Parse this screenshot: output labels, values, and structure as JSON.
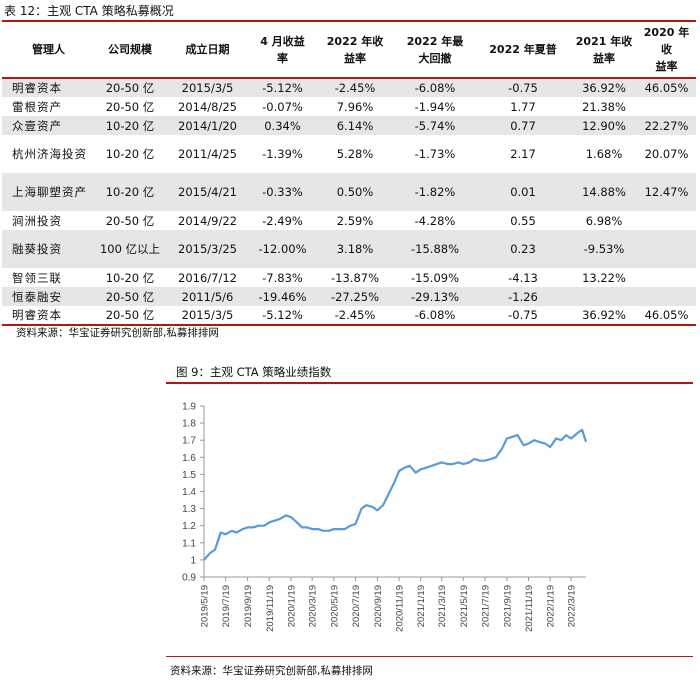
{
  "table": {
    "title": "表 12：主观 CTA 策略私募概况",
    "headers": [
      [
        "管理人"
      ],
      [
        "公司规模"
      ],
      [
        "成立日期"
      ],
      [
        "4 月收益",
        "率"
      ],
      [
        "2022 年收",
        "益率"
      ],
      [
        "2022 年最",
        "大回撤"
      ],
      [
        "2022 年夏普"
      ],
      [
        "2021 年收",
        "益率"
      ],
      [
        "2020 年收",
        "益率"
      ]
    ],
    "rows": [
      [
        "明睿资本",
        "20-50 亿",
        "2015/3/5",
        "-5.12%",
        "-2.45%",
        "-6.08%",
        "-0.75",
        "36.92%",
        "46.05%"
      ],
      [
        "雷根资产",
        "20-50 亿",
        "2014/8/25",
        "-0.07%",
        "7.96%",
        "-1.94%",
        "1.77",
        "21.38%",
        ""
      ],
      [
        "众壹资产",
        "10-20 亿",
        "2014/1/20",
        "0.34%",
        "6.14%",
        "-5.74%",
        "0.77",
        "12.90%",
        "22.27%"
      ],
      [
        "杭州济海投资",
        "10-20 亿",
        "2011/4/25",
        "-1.39%",
        "5.28%",
        "-1.73%",
        "2.17",
        "1.68%",
        "20.07%"
      ],
      [
        "上海聊塑资产",
        "10-20 亿",
        "2015/4/21",
        "-0.33%",
        "0.50%",
        "-1.82%",
        "0.01",
        "14.88%",
        "12.47%"
      ],
      [
        "涧洲投资",
        "20-50 亿",
        "2014/9/22",
        "-2.49%",
        "2.59%",
        "-4.28%",
        "0.55",
        "6.98%",
        ""
      ],
      [
        "融葵投资",
        "100 亿以上",
        "2015/3/25",
        "-12.00%",
        "3.18%",
        "-15.88%",
        "0.23",
        "-9.53%",
        ""
      ],
      [
        "智领三联",
        "10-20 亿",
        "2016/7/12",
        "-7.83%",
        "-13.87%",
        "-15.09%",
        "-4.13",
        "13.22%",
        ""
      ],
      [
        "恒泰融安",
        "20-50 亿",
        "2011/5/6",
        "-19.46%",
        "-27.25%",
        "-29.13%",
        "-1.26",
        "",
        ""
      ],
      [
        "明睿资本",
        "20-50 亿",
        "2015/3/5",
        "-5.12%",
        "-2.45%",
        "-6.08%",
        "-0.75",
        "36.92%",
        "46.05%"
      ]
    ],
    "source": "资料来源：华宝证券研究创新部,私募排排网"
  },
  "figure": {
    "title": "图 9：主观 CTA 策略业绩指数",
    "source": "资料来源：华宝证券研究创新部,私募排排网"
  },
  "chart_data": {
    "type": "line",
    "title": "",
    "xlabel": "",
    "ylabel": "",
    "ylim": [
      0.9,
      1.9
    ],
    "yticks": [
      "0.9",
      "1",
      "1.1",
      "1.2",
      "1.3",
      "1.4",
      "1.5",
      "1.6",
      "1.7",
      "1.8",
      "1.9"
    ],
    "grid": false,
    "legend": "none",
    "line_color": "#5b9bd5",
    "x_tick_labels": [
      "2019/5/19",
      "2019/7/19",
      "2019/9/19",
      "2019/11/19",
      "2020/1/19",
      "2020/3/19",
      "2020/5/19",
      "2020/7/19",
      "2020/9/19",
      "2020/11/19",
      "2021/1/19",
      "2021/3/19",
      "2021/5/19",
      "2021/7/19",
      "2021/9/19",
      "2021/11/19",
      "2022/1/19",
      "2022/3/19"
    ],
    "series": [
      {
        "x": [
          "2019/5/19",
          "2019/6/5",
          "2019/6/19",
          "2019/7/5",
          "2019/7/19",
          "2019/8/5",
          "2019/8/19",
          "2019/9/5",
          "2019/9/19",
          "2019/10/5",
          "2019/10/19",
          "2019/11/5",
          "2019/11/19",
          "2019/12/5",
          "2019/12/19",
          "2020/1/5",
          "2020/1/19",
          "2020/2/5",
          "2020/2/19",
          "2020/3/5",
          "2020/3/19",
          "2020/4/5",
          "2020/4/19",
          "2020/5/5",
          "2020/5/19",
          "2020/6/5",
          "2020/6/19",
          "2020/7/5",
          "2020/7/19",
          "2020/8/5",
          "2020/8/19",
          "2020/9/5",
          "2020/9/19",
          "2020/10/5",
          "2020/10/19",
          "2020/11/5",
          "2020/11/19",
          "2020/12/5",
          "2020/12/19",
          "2021/1/5",
          "2021/1/19",
          "2021/2/5",
          "2021/2/19",
          "2021/3/5",
          "2021/3/19",
          "2021/4/5",
          "2021/4/19",
          "2021/5/5",
          "2021/5/19",
          "2021/6/5",
          "2021/6/19",
          "2021/7/5",
          "2021/7/19",
          "2021/8/5",
          "2021/8/19",
          "2021/9/5",
          "2021/9/19",
          "2021/10/5",
          "2021/10/19",
          "2021/11/5",
          "2021/11/19",
          "2021/12/5",
          "2021/12/19",
          "2022/1/5",
          "2022/1/19",
          "2022/2/5",
          "2022/2/19",
          "2022/3/5",
          "2022/3/19",
          "2022/4/5",
          "2022/4/19",
          "2022/4/30"
        ],
        "values": [
          1.0,
          1.04,
          1.06,
          1.16,
          1.15,
          1.17,
          1.16,
          1.18,
          1.19,
          1.19,
          1.2,
          1.2,
          1.22,
          1.23,
          1.24,
          1.26,
          1.25,
          1.22,
          1.19,
          1.19,
          1.18,
          1.18,
          1.17,
          1.17,
          1.18,
          1.18,
          1.18,
          1.2,
          1.21,
          1.3,
          1.32,
          1.31,
          1.29,
          1.32,
          1.38,
          1.45,
          1.52,
          1.54,
          1.55,
          1.51,
          1.53,
          1.54,
          1.55,
          1.56,
          1.57,
          1.56,
          1.56,
          1.57,
          1.56,
          1.57,
          1.59,
          1.58,
          1.58,
          1.59,
          1.6,
          1.65,
          1.71,
          1.72,
          1.73,
          1.67,
          1.68,
          1.7,
          1.69,
          1.68,
          1.66,
          1.71,
          1.7,
          1.73,
          1.71,
          1.74,
          1.76,
          1.69
        ]
      }
    ]
  }
}
